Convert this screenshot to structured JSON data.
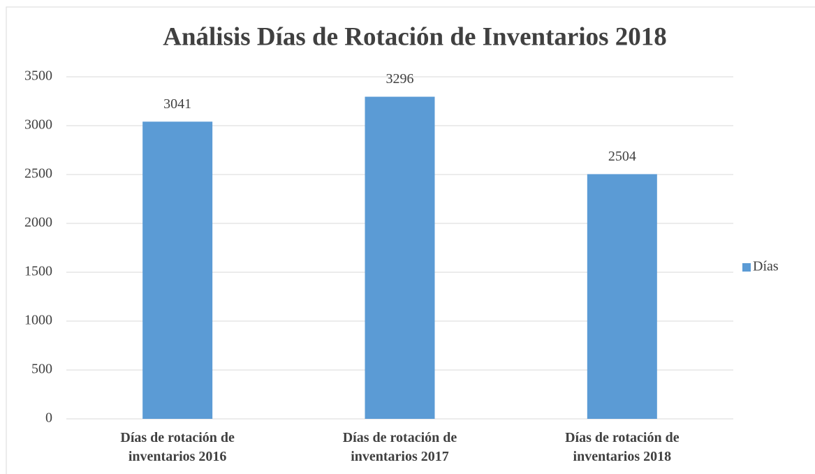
{
  "chart_data": {
    "type": "bar",
    "title": "Análisis Días de Rotación de Inventarios 2018",
    "categories": [
      "Días de rotación de inventarios 2016",
      "Días de rotación de inventarios 2017",
      "Días de rotación de inventarios 2018"
    ],
    "series": [
      {
        "name": "Días",
        "color": "#5b9bd5",
        "values": [
          3041,
          3296,
          2504
        ]
      }
    ],
    "ylim": [
      0,
      3500
    ],
    "yticks": [
      0,
      500,
      1000,
      1500,
      2000,
      2500,
      3000,
      3500
    ],
    "grid": true,
    "legend": "right"
  }
}
